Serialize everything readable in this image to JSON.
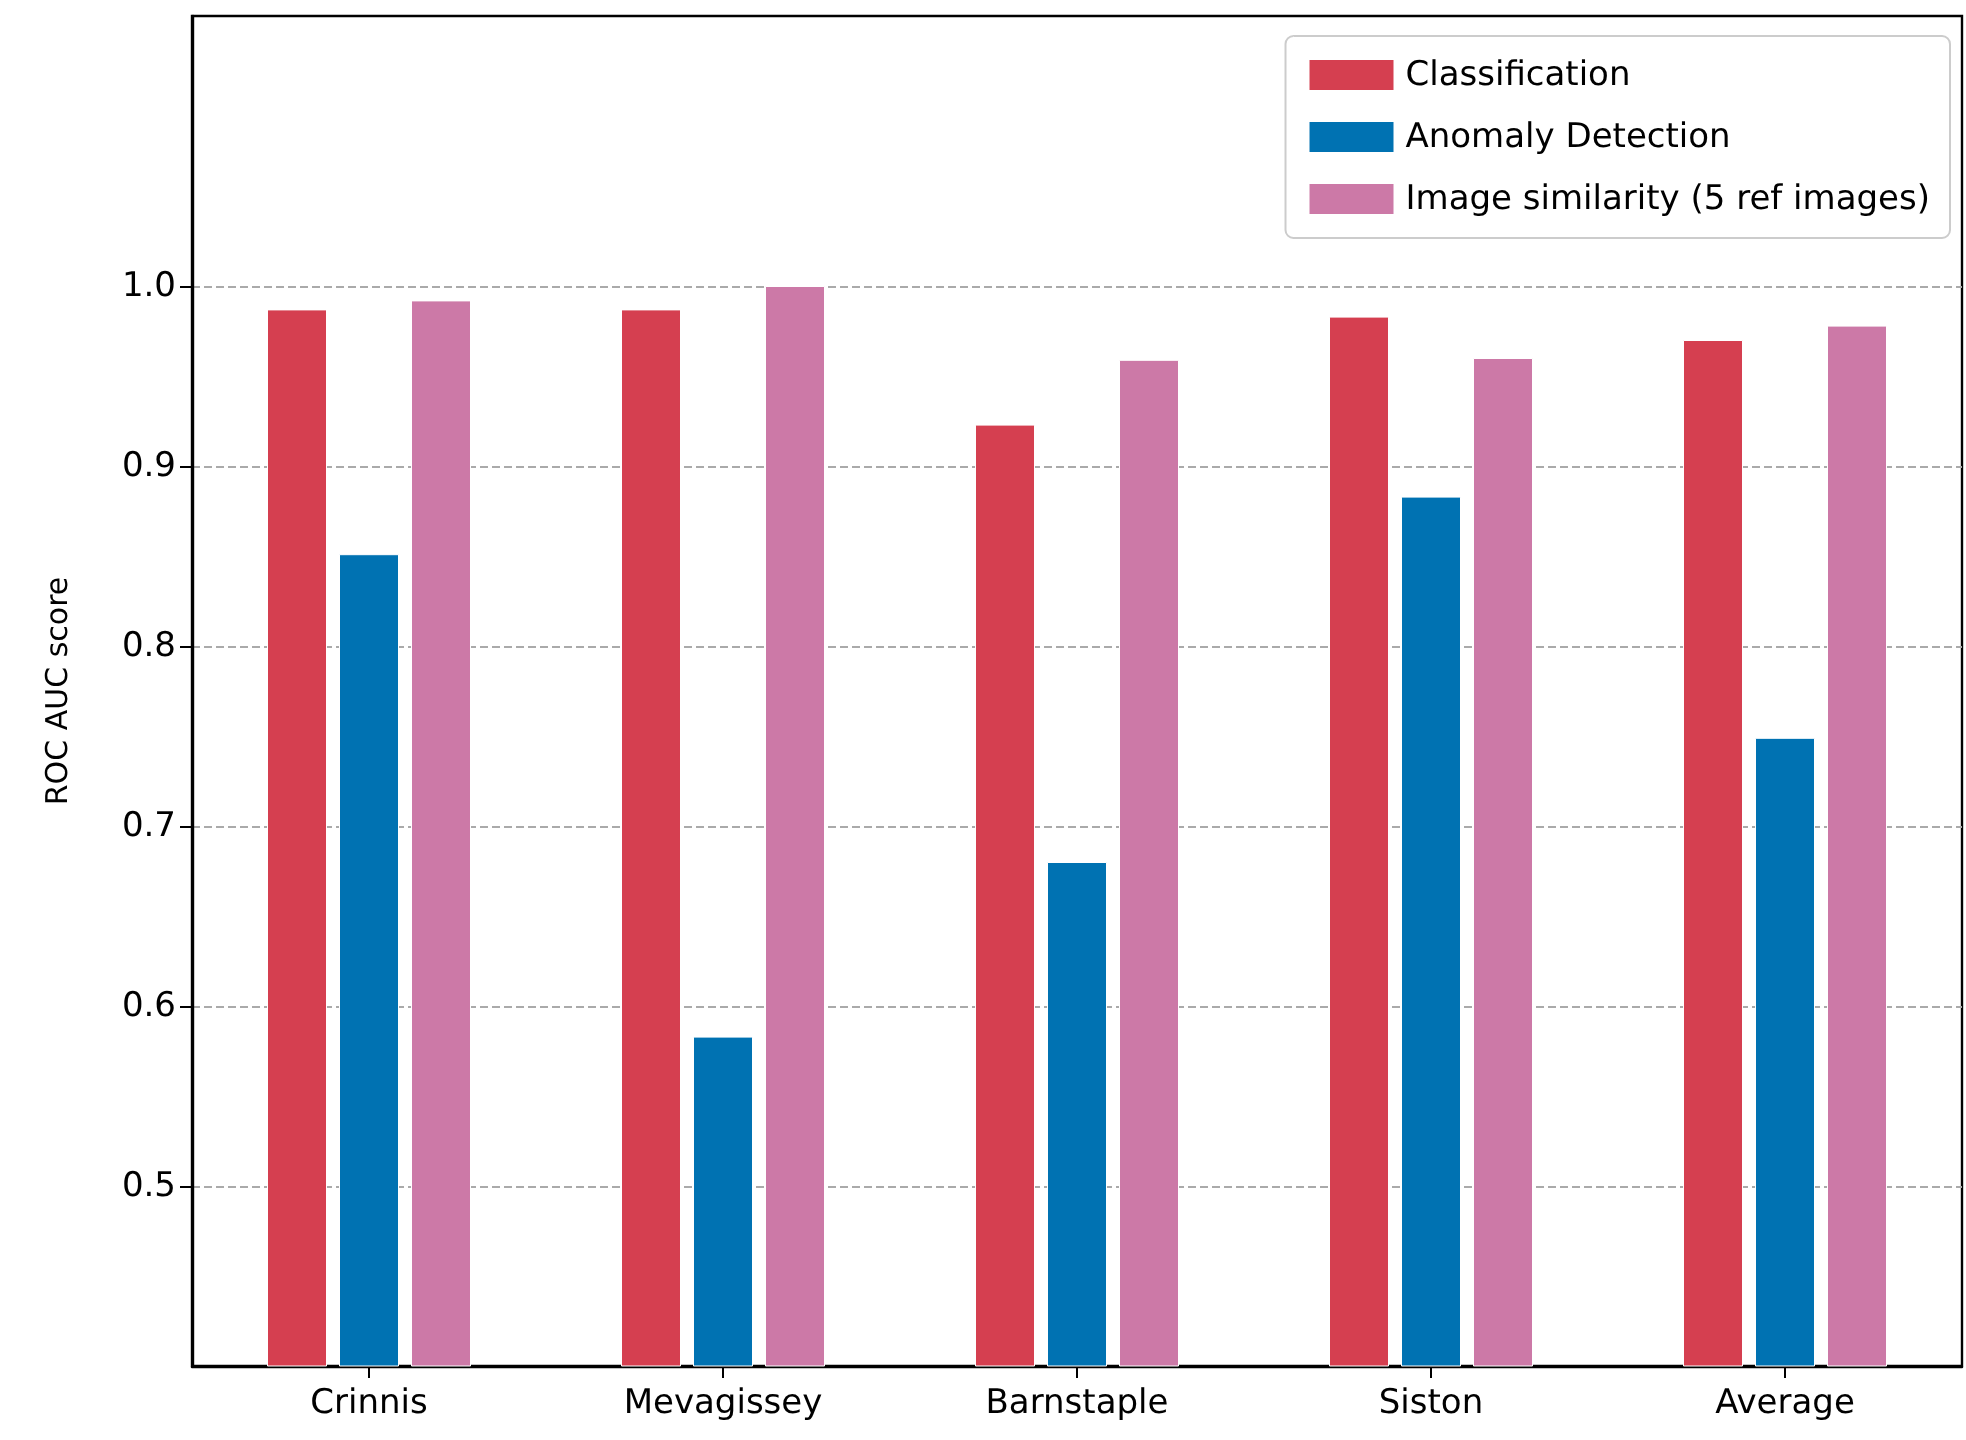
{
  "chart_data": {
    "type": "bar",
    "ylabel": "ROC AUC score",
    "categories": [
      "Crinnis",
      "Mevagissey",
      "Barnstaple",
      "Siston",
      "Average"
    ],
    "series": [
      {
        "name": "Classification",
        "color": "#d53f50",
        "values": [
          0.987,
          0.987,
          0.923,
          0.983,
          0.97
        ]
      },
      {
        "name": "Anomaly Detection",
        "color": "#0072b2",
        "values": [
          0.851,
          0.583,
          0.68,
          0.883,
          0.749
        ]
      },
      {
        "name": "Image similarity (5 ref images)",
        "color": "#cc79a7",
        "values": [
          0.992,
          1.0,
          0.959,
          0.96,
          0.978
        ]
      }
    ],
    "ylim": [
      0.4,
      1.15
    ],
    "yticks": [
      0.5,
      0.6,
      0.7,
      0.8,
      0.9,
      {
        "value": 1.0,
        "label": "1.0"
      }
    ],
    "grid": "y",
    "legend": "top right"
  }
}
